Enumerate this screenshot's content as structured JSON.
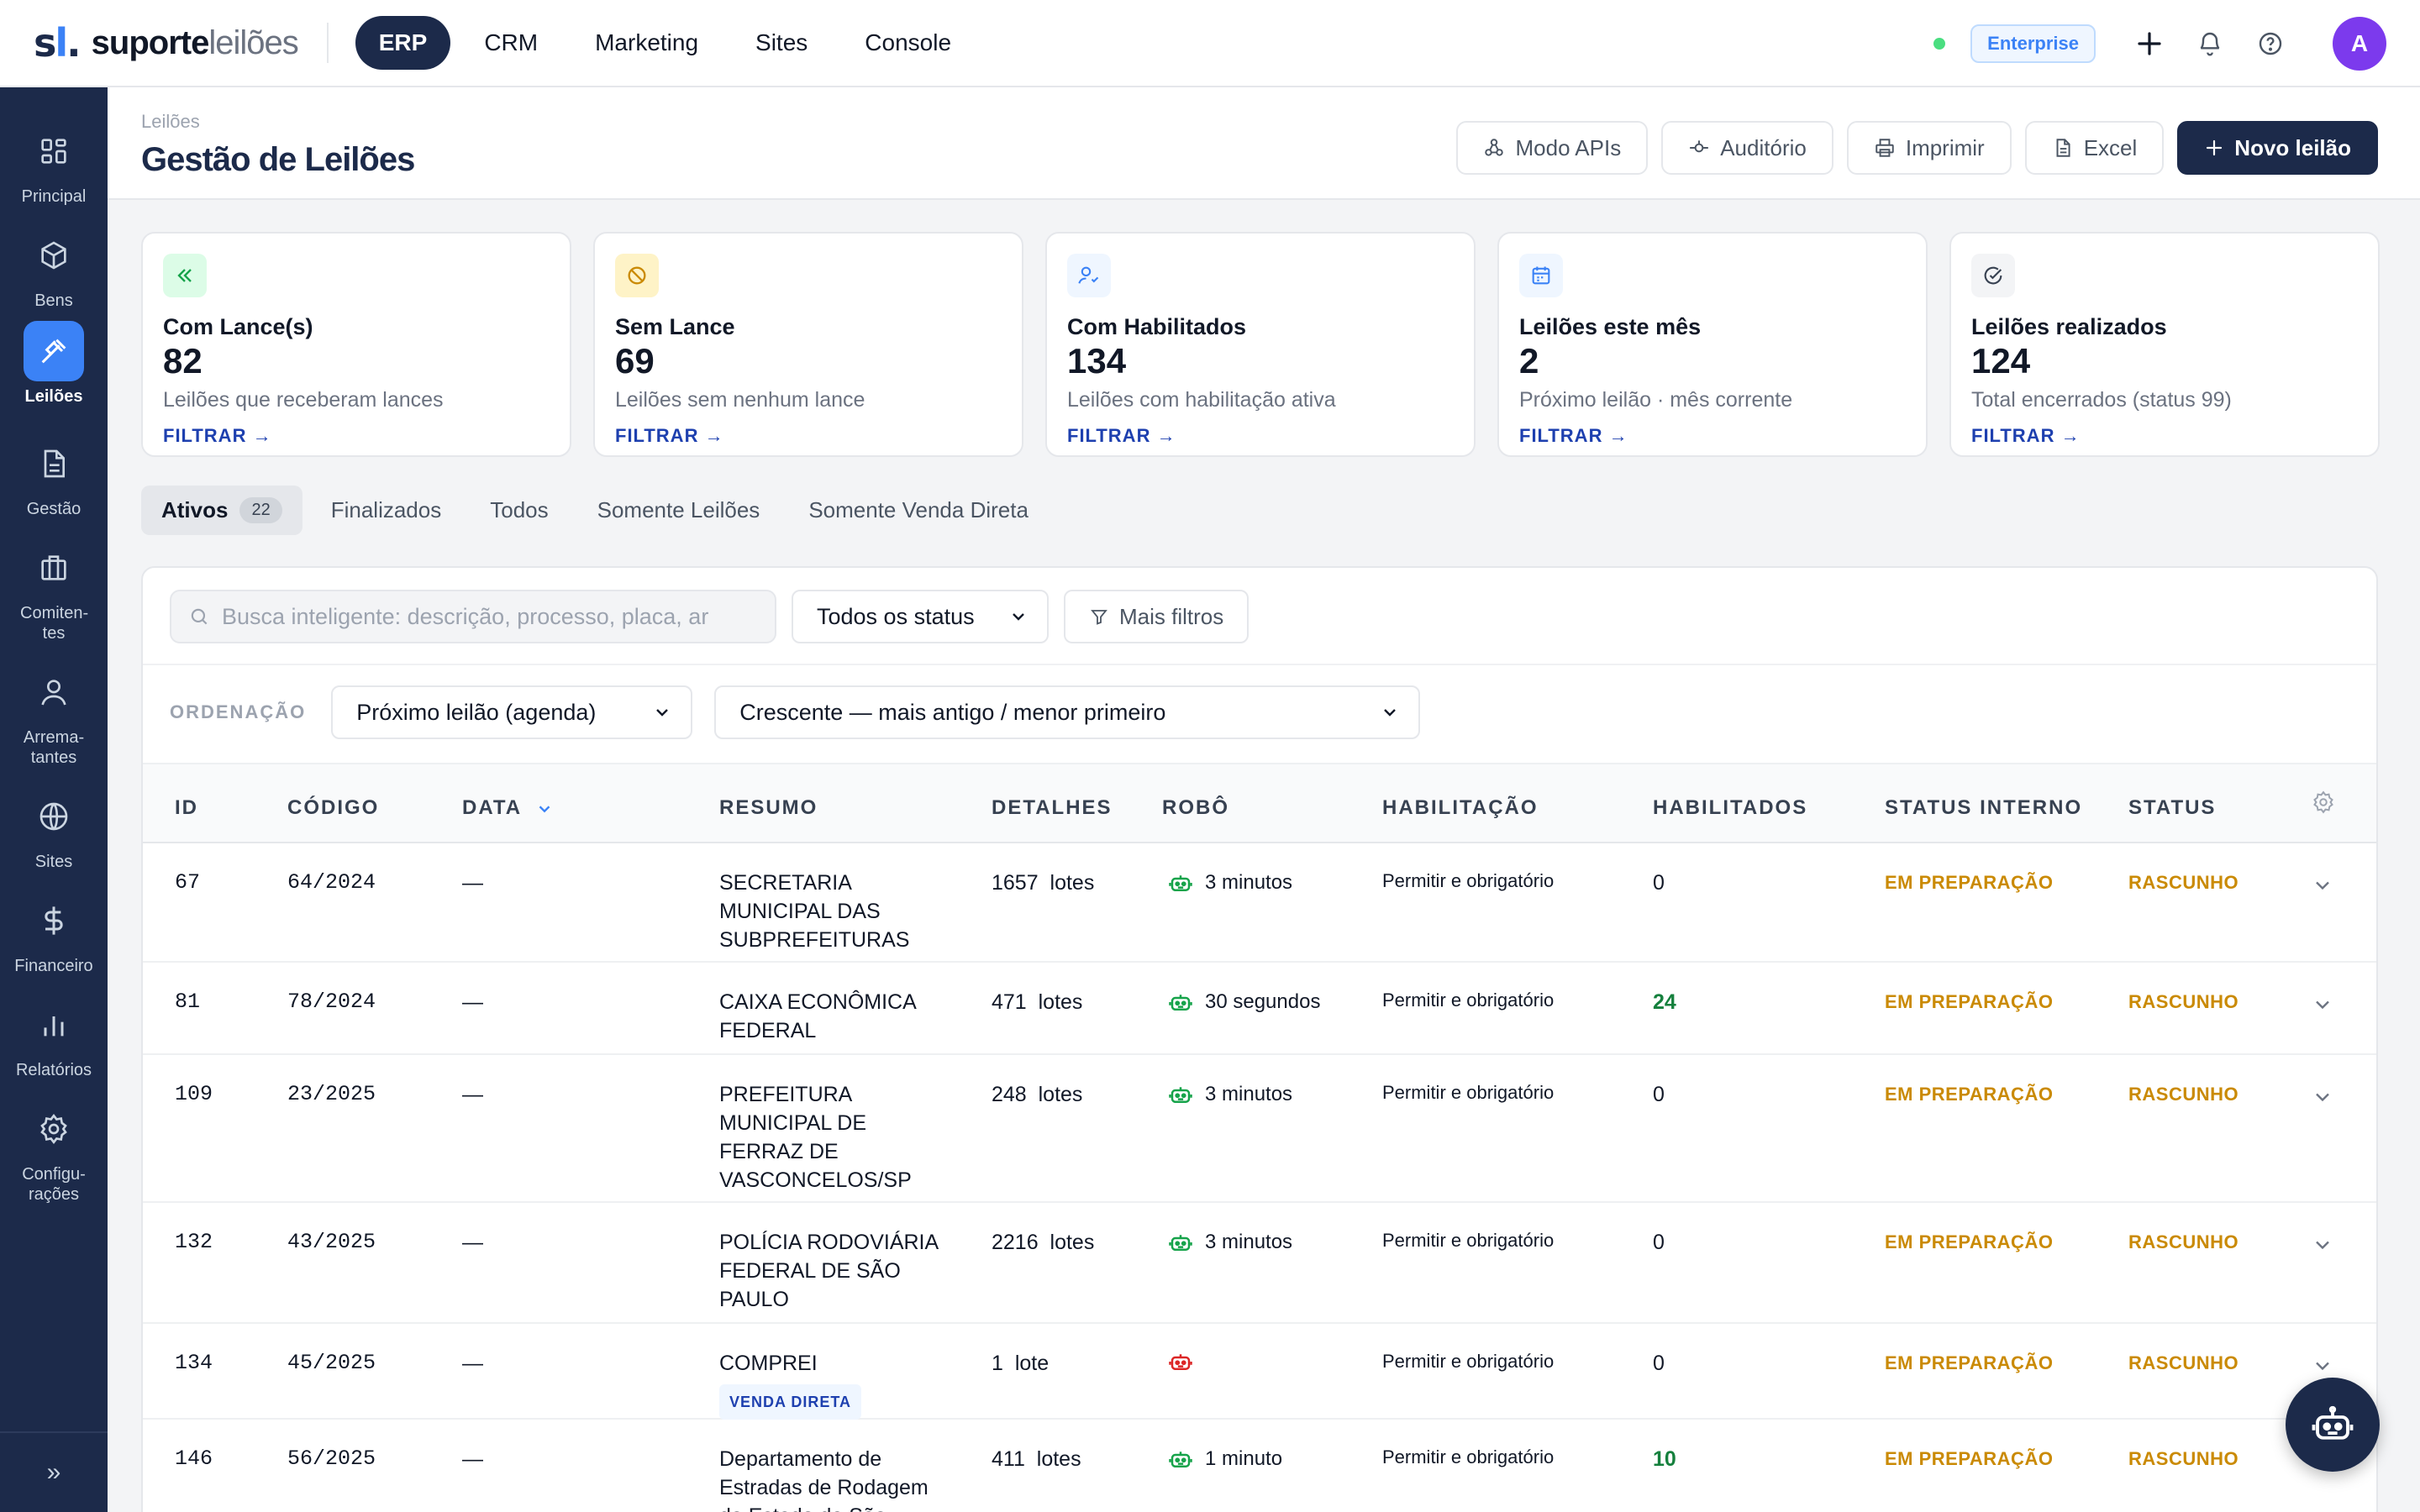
{
  "brand": {
    "mark": "sl",
    "name_a": "suporte",
    "name_b": "leilões"
  },
  "topnav": [
    "ERP",
    "CRM",
    "Marketing",
    "Sites",
    "Console"
  ],
  "plan_badge": "Enterprise",
  "user_initial": "A",
  "sidebar": [
    {
      "label": "Principal",
      "icon": "grid-icon"
    },
    {
      "label": "Bens",
      "icon": "box-icon"
    },
    {
      "label": "Leilões",
      "icon": "gavel-icon"
    },
    {
      "label": "Gestão",
      "icon": "document-icon"
    },
    {
      "label": "Comiten-tes",
      "icon": "building-icon"
    },
    {
      "label": "Arrema-tantes",
      "icon": "user-icon"
    },
    {
      "label": "Sites",
      "icon": "globe-icon"
    },
    {
      "label": "Financeiro",
      "icon": "dollar-icon"
    },
    {
      "label": "Relatórios",
      "icon": "chart-icon"
    },
    {
      "label": "Configu-rações",
      "icon": "gear-icon"
    }
  ],
  "sidebar_collapse": "»",
  "header": {
    "breadcrumb": "Leilões",
    "title": "Gestão de Leilões",
    "actions": [
      "Modo APIs",
      "Auditório",
      "Imprimir",
      "Excel",
      "Novo leilão"
    ]
  },
  "cards": [
    {
      "title": "Com Lance(s)",
      "value": "82",
      "desc": "Leilões que receberam lances",
      "link": "FILTRAR →",
      "icon": "double-chevron-icon",
      "color": "#16a34a",
      "bg": "#dcfce7"
    },
    {
      "title": "Sem Lance",
      "value": "69",
      "desc": "Leilões sem nenhum lance",
      "link": "FILTRAR →",
      "icon": "ban-icon",
      "color": "#ca8a04",
      "bg": "#fef3c7"
    },
    {
      "title": "Com Habilitados",
      "value": "134",
      "desc": "Leilões com habilitação ativa",
      "link": "FILTRAR →",
      "icon": "user-check-icon",
      "color": "#3b82f6",
      "bg": "#eff6ff"
    },
    {
      "title": "Leilões este mês",
      "value": "2",
      "desc": "Próximo leilão · mês corrente",
      "link": "FILTRAR →",
      "icon": "calendar-icon",
      "color": "#3b82f6",
      "bg": "#eff6ff"
    },
    {
      "title": "Leilões realizados",
      "value": "124",
      "desc": "Total encerrados (status 99)",
      "link": "FILTRAR →",
      "icon": "check-circle-icon",
      "color": "#374151",
      "bg": "#f3f4f6"
    }
  ],
  "tabs": [
    {
      "label": "Ativos",
      "count": "22"
    },
    {
      "label": "Finalizados"
    },
    {
      "label": "Todos"
    },
    {
      "label": "Somente Leilões"
    },
    {
      "label": "Somente Venda Direta"
    }
  ],
  "filters": {
    "search_placeholder": "Busca inteligente: descrição, processo, placa, ar",
    "status_select": "Todos os status",
    "more_filters": "Mais filtros",
    "order_label": "ORDENAÇÃO",
    "order_by": "Próximo leilão (agenda)",
    "order_dir": "Crescente — mais antigo / menor primeiro"
  },
  "columns": [
    "ID",
    "CÓDIGO",
    "DATA",
    "RESUMO",
    "DETALHES",
    "ROBÔ",
    "HABILITAÇÃO",
    "HABILITADOS",
    "STATUS INTERNO",
    "STATUS"
  ],
  "rows": [
    {
      "id": "67",
      "codigo": "64/2024",
      "data": "—",
      "resumo": "SECRETARIA MUNICIPAL DAS SUBPREFEITURAS",
      "lotes": "1657",
      "lotes_label": "lotes",
      "robo": "3 minutos",
      "robo_active": true,
      "habilitacao": "Permitir e obrigatório",
      "habilitados": "0",
      "status_interno": "EM PREPARAÇÃO",
      "status": "RASCUNHO"
    },
    {
      "id": "81",
      "codigo": "78/2024",
      "data": "—",
      "resumo": "CAIXA ECONÔMICA FEDERAL",
      "lotes": "471",
      "lotes_label": "lotes",
      "robo": "30 segundos",
      "robo_active": true,
      "habilitacao": "Permitir e obrigatório",
      "habilitados": "24",
      "status_interno": "EM PREPARAÇÃO",
      "status": "RASCUNHO"
    },
    {
      "id": "109",
      "codigo": "23/2025",
      "data": "—",
      "resumo": "PREFEITURA MUNICIPAL DE FERRAZ DE VASCONCELOS/SP",
      "lotes": "248",
      "lotes_label": "lotes",
      "robo": "3 minutos",
      "robo_active": true,
      "habilitacao": "Permitir e obrigatório",
      "habilitados": "0",
      "status_interno": "EM PREPARAÇÃO",
      "status": "RASCUNHO"
    },
    {
      "id": "132",
      "codigo": "43/2025",
      "data": "—",
      "resumo": "POLÍCIA RODOVIÁRIA FEDERAL DE SÃO PAULO",
      "lotes": "2216",
      "lotes_label": "lotes",
      "robo": "3 minutos",
      "robo_active": true,
      "habilitacao": "Permitir e obrigatório",
      "habilitados": "0",
      "status_interno": "EM PREPARAÇÃO",
      "status": "RASCUNHO"
    },
    {
      "id": "134",
      "codigo": "45/2025",
      "data": "—",
      "resumo": "COMPREI",
      "tag": "VENDA DIRETA",
      "lotes": "1",
      "lotes_label": "lote",
      "robo": "",
      "robo_active": false,
      "habilitacao": "Permitir e obrigatório",
      "habilitados": "0",
      "status_interno": "EM PREPARAÇÃO",
      "status": "RASCUNHO"
    },
    {
      "id": "146",
      "codigo": "56/2025",
      "data": "—",
      "resumo": "Departamento de Estradas de Rodagem do Estado de São",
      "lotes": "411",
      "lotes_label": "lotes",
      "robo": "1 minuto",
      "robo_active": true,
      "habilitacao": "Permitir e obrigatório",
      "habilitados": "10",
      "status_interno": "EM PREPARAÇÃO",
      "status": "RASCUNHO"
    }
  ]
}
